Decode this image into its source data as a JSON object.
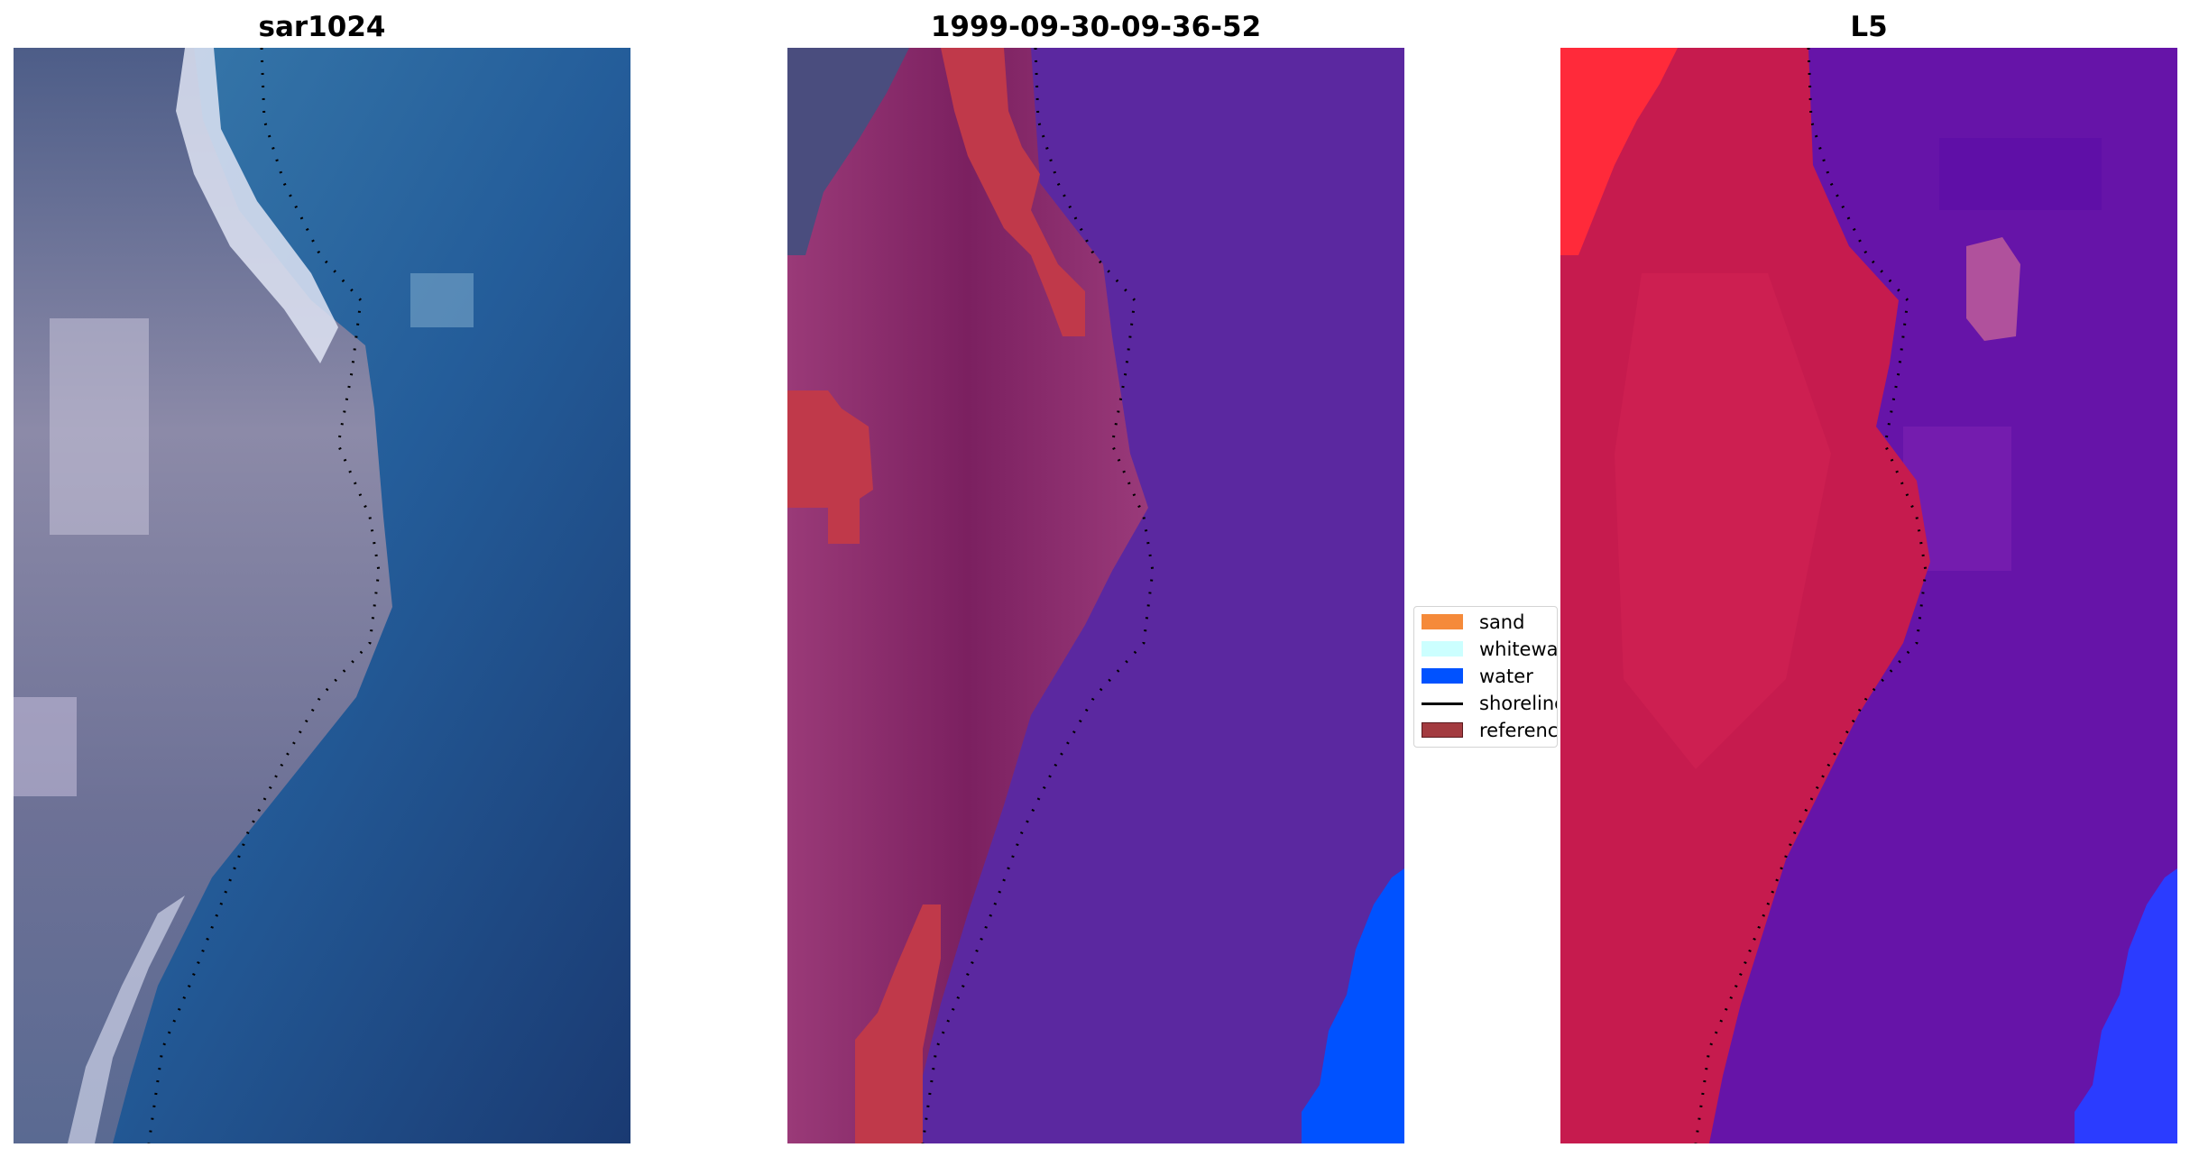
{
  "panels": [
    {
      "title": "sar1024",
      "name": "rgb-panel"
    },
    {
      "title": "1999-09-30-09-36-52",
      "name": "classified-panel"
    },
    {
      "title": "L5",
      "name": "index-panel"
    }
  ],
  "legend": {
    "items": [
      {
        "label": "sand",
        "color": "#f58a3a",
        "kind": "patch"
      },
      {
        "label": "whitewater",
        "color": "#ccffff",
        "kind": "patch"
      },
      {
        "label": "water",
        "color": "#0052ff",
        "kind": "patch"
      },
      {
        "label": "shoreline",
        "color": "#000000",
        "kind": "line"
      },
      {
        "label": "reference",
        "color": "#a33b40",
        "kind": "patch"
      }
    ]
  },
  "colors": {
    "rgb_land": "#5e6a8f",
    "rgb_sand": "#eef2fb",
    "rgb_ocean": "#1f4f8f",
    "classified_land": "#8a2a6a",
    "classified_water": "#5b29a0",
    "classified_blue": "#0052ff",
    "reference": "#b83a4a",
    "index_land": "#c41848",
    "index_water": "#6a14a8",
    "index_blue": "#2b3cff"
  }
}
